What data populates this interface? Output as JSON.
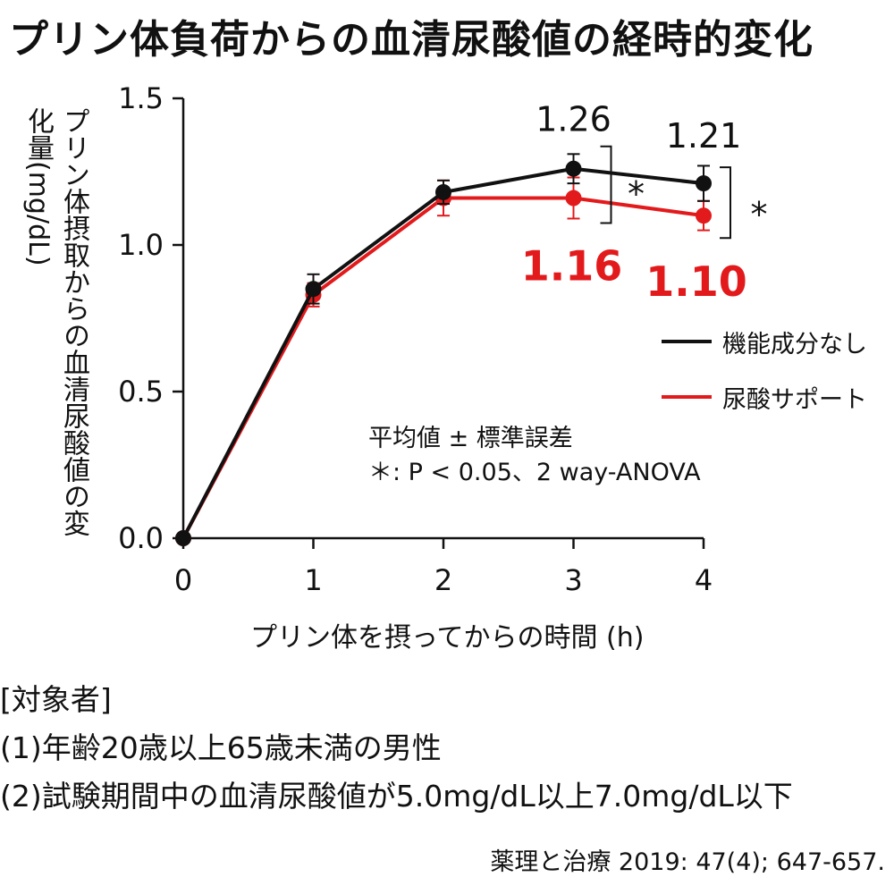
{
  "title": "プリン体負荷からの血清尿酸値の経時的変化",
  "chart_data": {
    "type": "line",
    "xlabel": "プリン体を摂ってからの時間 (h)",
    "ylabel": "プリン体摂取からの血清尿酸値の変化量(mg/dL)",
    "x": [
      0,
      1,
      2,
      3,
      4
    ],
    "xticks": [
      "0",
      "1",
      "2",
      "3",
      "4"
    ],
    "yticks": [
      "0.0",
      "0.5",
      "1.0",
      "1.5"
    ],
    "xlim": [
      0,
      4
    ],
    "ylim": [
      0,
      1.5
    ],
    "grid": false,
    "legend_position": "right",
    "series": [
      {
        "name": "機能成分なし",
        "color": "#111111",
        "values": [
          0.0,
          0.85,
          1.18,
          1.26,
          1.21
        ],
        "errors": [
          0.0,
          0.05,
          0.04,
          0.05,
          0.06
        ]
      },
      {
        "name": "尿酸サポート",
        "color": "#e31a1c",
        "values": [
          0.0,
          0.83,
          1.16,
          1.16,
          1.1
        ],
        "errors": [
          0.0,
          0.04,
          0.06,
          0.07,
          0.05
        ]
      }
    ],
    "value_labels": [
      {
        "text": "1.26",
        "color": "#111111"
      },
      {
        "text": "1.21",
        "color": "#111111"
      },
      {
        "text": "1.16",
        "color": "#e31a1c"
      },
      {
        "text": "1.10",
        "color": "#e31a1c"
      }
    ],
    "significance_marks": [
      "*",
      "*"
    ]
  },
  "note": {
    "line1": "平均値 ± 標準誤差",
    "line2": "＊: P < 0.05、2 way-ANOVA"
  },
  "subjects": {
    "heading": "[対象者]",
    "item1": "(1)年齢20歳以上65歳未満の男性",
    "item2": "(2)試験期間中の血清尿酸値が5.0mg/dL以上7.0mg/dL以下"
  },
  "citation": "薬理と治療 2019: 47(4); 647-657."
}
